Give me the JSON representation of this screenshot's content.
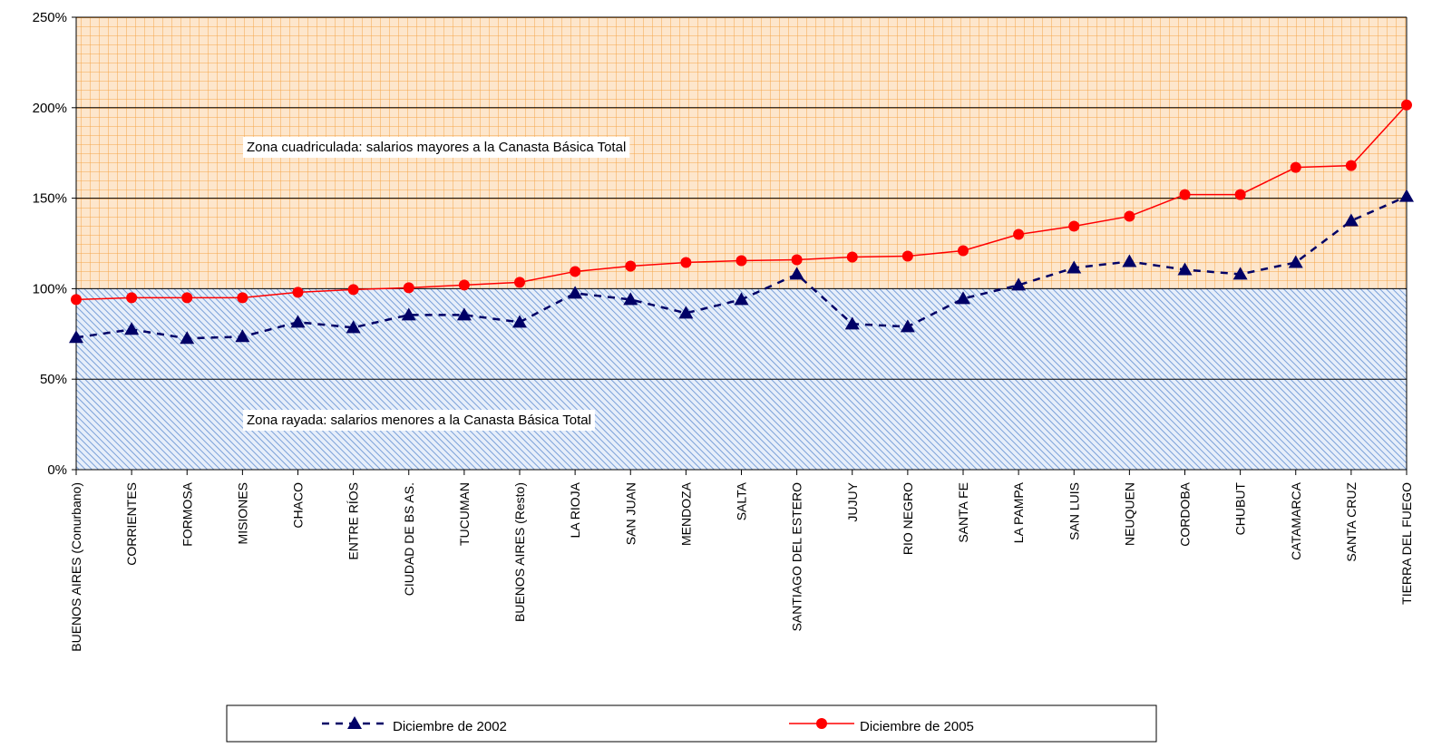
{
  "chart_data": {
    "type": "line",
    "categories": [
      "BUENOS AIRES (Conurbano)",
      "CORRIENTES",
      "FORMOSA",
      "MISIONES",
      "CHACO",
      "ENTRE RÍOS",
      "CIUDAD DE BS AS.",
      "TUCUMAN",
      "BUENOS AIRES (Resto)",
      "LA RIOJA",
      "SAN JUAN",
      "MENDOZA",
      "SALTA",
      "SANTIAGO DEL ESTERO",
      "JUJUY",
      "RIO NEGRO",
      "SANTA FE",
      "LA PAMPA",
      "SAN LUIS",
      "NEUQUEN",
      "CORDOBA",
      "CHUBUT",
      "CATAMARCA",
      "SANTA CRUZ",
      "TIERRA DEL FUEGO"
    ],
    "series": [
      {
        "name": "Diciembre de 2002",
        "color": "#000066",
        "marker": "triangle",
        "dash": true,
        "values": [
          73,
          77.5,
          72.5,
          73.5,
          81.5,
          78.5,
          85.5,
          85.5,
          81.5,
          97.5,
          94,
          86.5,
          94,
          108,
          80.5,
          79,
          94.5,
          102,
          111.5,
          115,
          110.5,
          108,
          114.5,
          137.5,
          151
        ]
      },
      {
        "name": "Diciembre de 2005",
        "color": "#ff0000",
        "marker": "circle",
        "dash": false,
        "values": [
          94,
          95,
          95,
          95,
          98,
          99.5,
          100.5,
          102,
          103.5,
          109.5,
          112.5,
          114.5,
          115.5,
          116,
          117.5,
          118,
          121,
          130,
          134.5,
          140,
          152,
          152,
          167,
          168,
          201.5
        ]
      }
    ],
    "ylim": [
      0,
      250
    ],
    "yticks": [
      {
        "value": 0,
        "label": "0%"
      },
      {
        "value": 50,
        "label": "50%"
      },
      {
        "value": 100,
        "label": "100%"
      },
      {
        "value": 150,
        "label": "150%"
      },
      {
        "value": 200,
        "label": "200%"
      },
      {
        "value": 250,
        "label": "250%"
      }
    ],
    "annotations": [
      "Zona cuadriculada: salarios mayores a la Canasta Básica Total",
      "Zona rayada: salarios menores a la Canasta Básica Total"
    ],
    "legend": "bottom"
  }
}
